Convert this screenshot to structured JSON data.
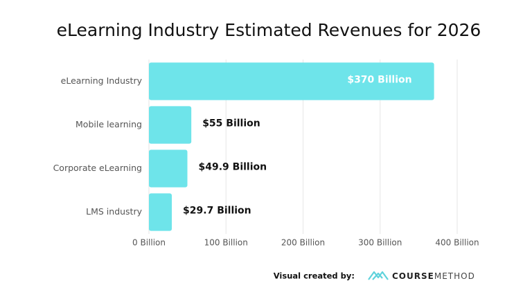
{
  "chart_data": {
    "type": "bar",
    "orientation": "horizontal",
    "title": "eLearning Industry Estimated Revenues for 2026",
    "categories": [
      "eLearning Industry",
      "Mobile learning",
      "Corporate eLearning",
      "LMS industry"
    ],
    "values": [
      370,
      55,
      49.9,
      29.7
    ],
    "value_labels": [
      "$370 Billion",
      "$55 Billion",
      "$49.9 Billion",
      "$29.7 Billion"
    ],
    "color": "#6ee4ea",
    "xlim": [
      0,
      400
    ],
    "xticks": [
      {
        "value": 0,
        "label": "0 Billion"
      },
      {
        "value": 100,
        "label": "100 Billion"
      },
      {
        "value": 200,
        "label": "200 Billion"
      },
      {
        "value": 300,
        "label": "300 Billion"
      },
      {
        "value": 400,
        "label": "400 Billion"
      }
    ],
    "grid": true
  },
  "footer": {
    "credit": "Visual created by:",
    "brand_bold": "COURSE",
    "brand_light": "METHOD"
  }
}
